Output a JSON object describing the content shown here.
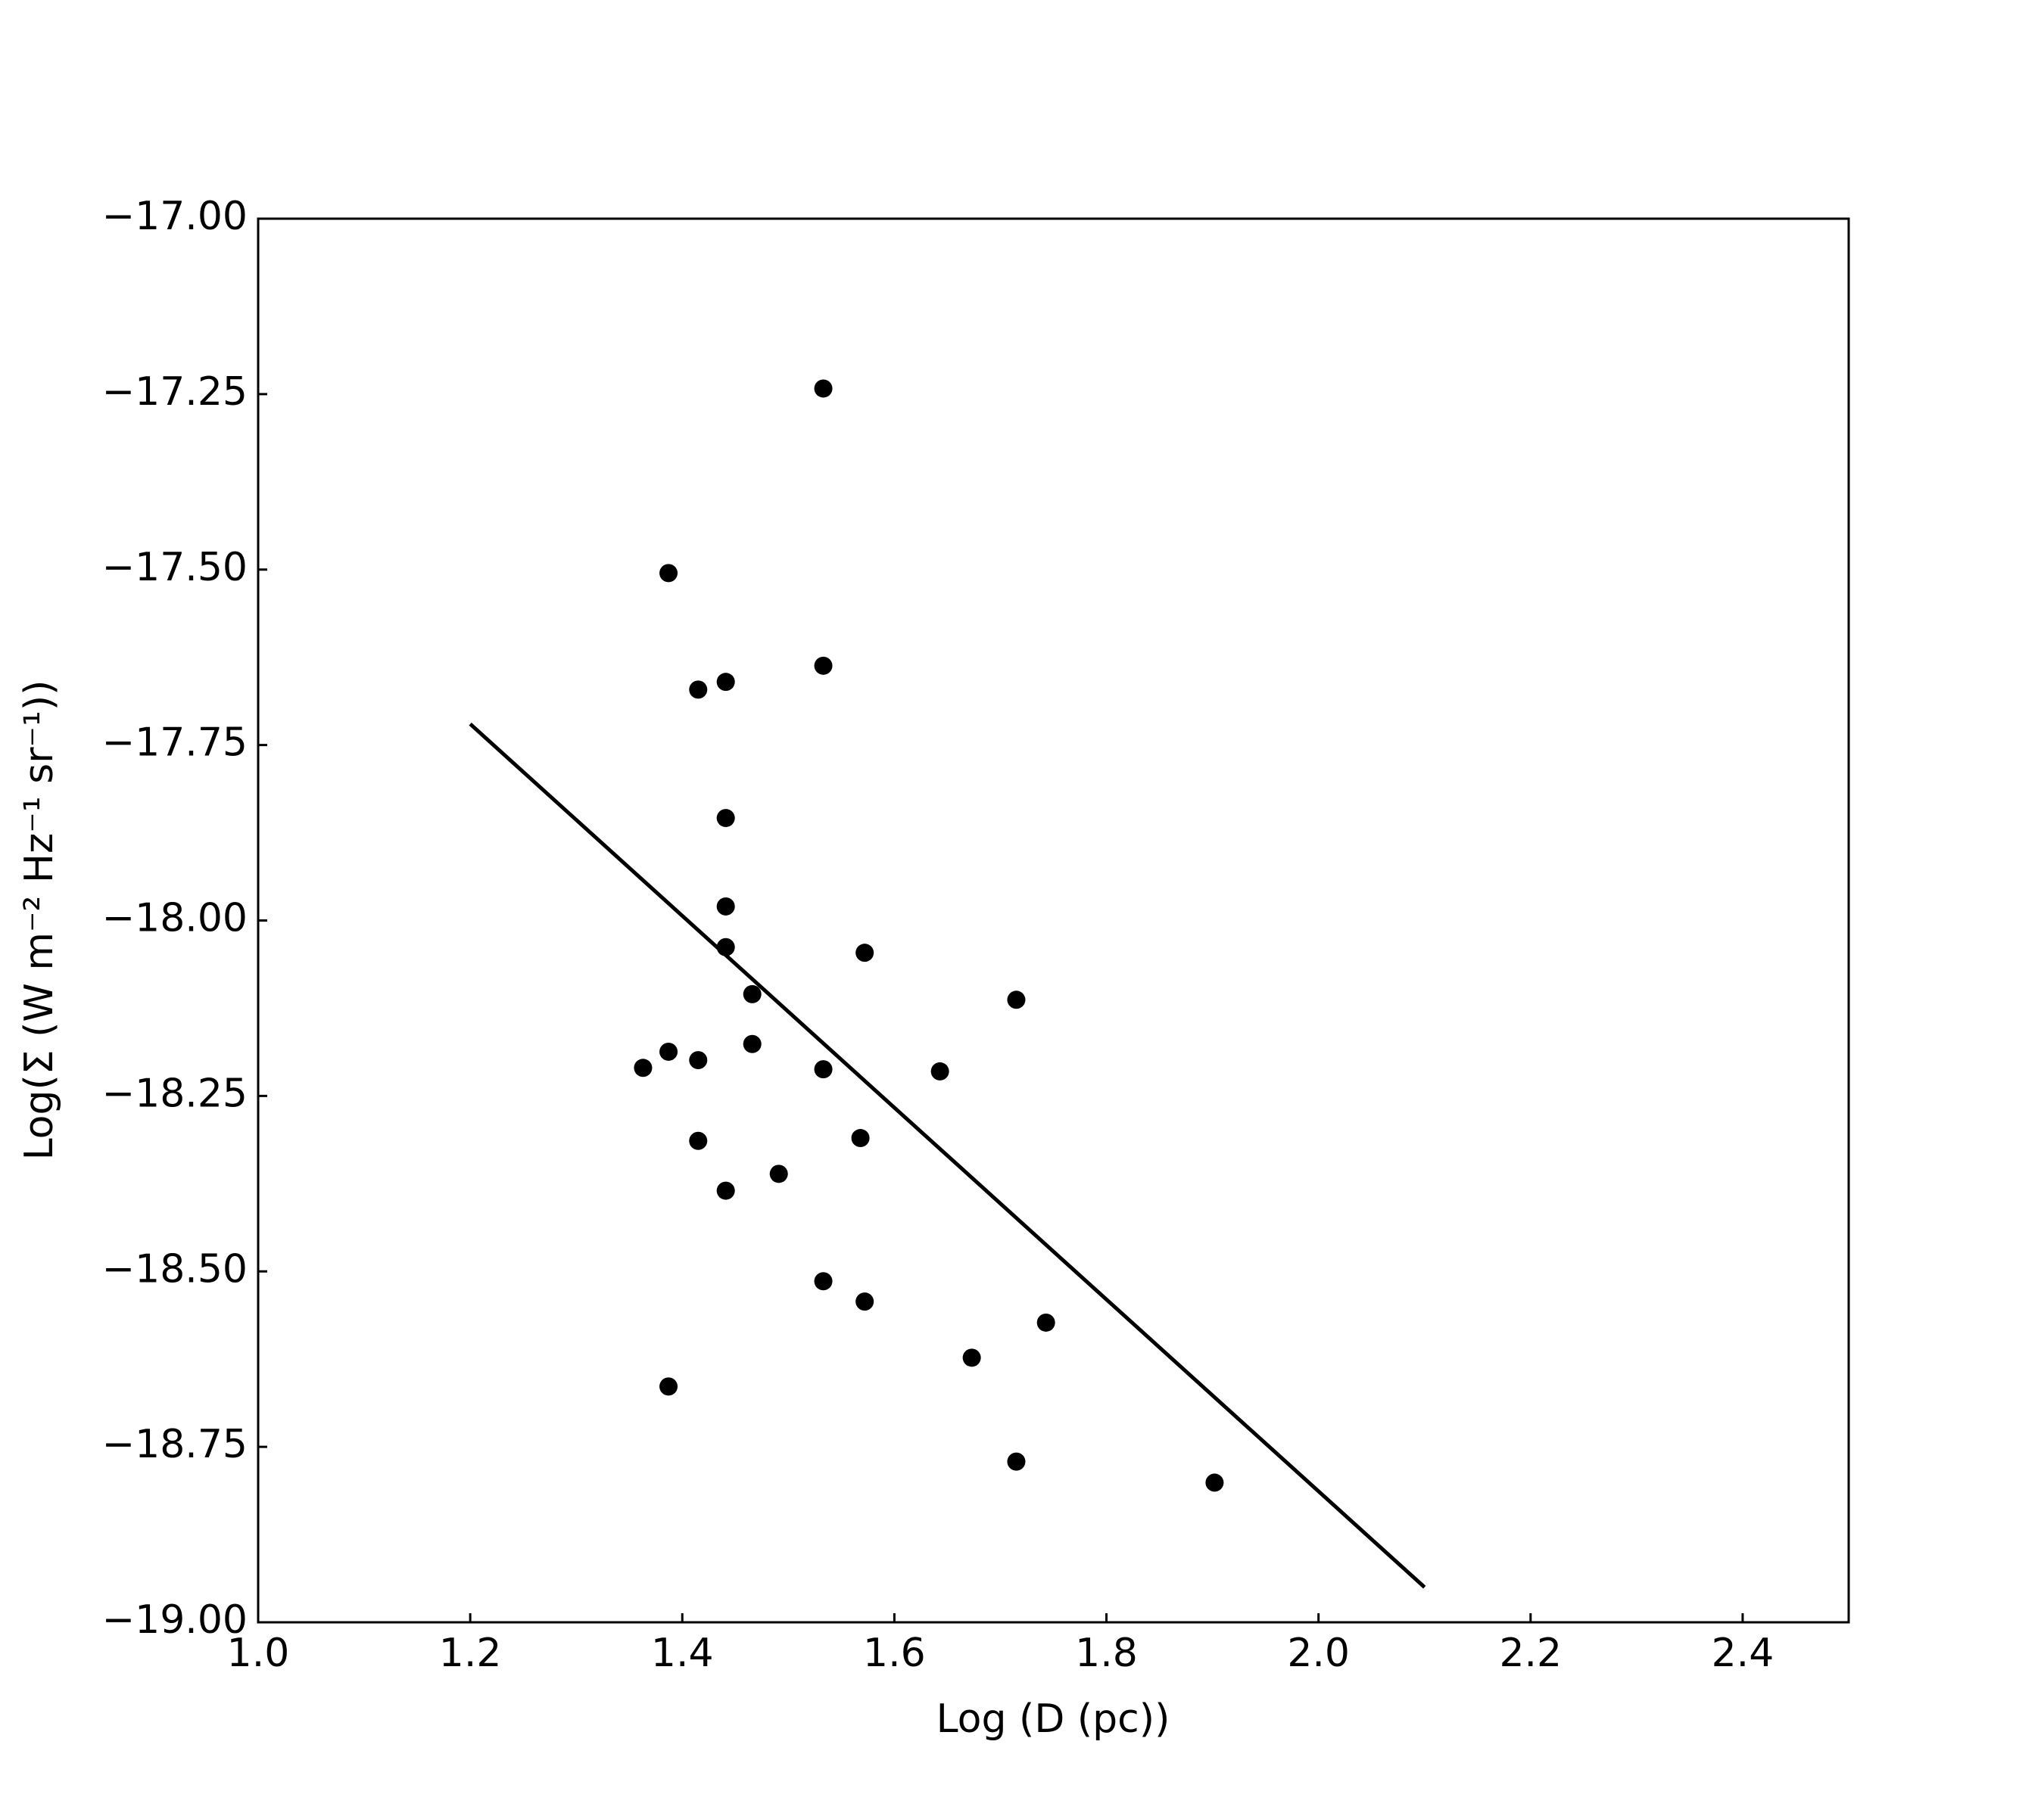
{
  "chart_data": {
    "type": "scatter",
    "xlabel": "Log (D (pc))",
    "ylabel": "Log(Σ (W m⁻² Hz⁻¹ sr⁻¹))",
    "xlim": [
      1.0,
      2.5
    ],
    "ylim": [
      -19.0,
      -17.0
    ],
    "xticks": [
      {
        "value": 1.0,
        "label": "1.0"
      },
      {
        "value": 1.2,
        "label": "1.2"
      },
      {
        "value": 1.4,
        "label": "1.4"
      },
      {
        "value": 1.6,
        "label": "1.6"
      },
      {
        "value": 1.8,
        "label": "1.8"
      },
      {
        "value": 2.0,
        "label": "2.0"
      },
      {
        "value": 2.2,
        "label": "2.2"
      },
      {
        "value": 2.4,
        "label": "2.4"
      }
    ],
    "yticks": [
      {
        "value": -17.0,
        "label": "−17.00"
      },
      {
        "value": -17.25,
        "label": "−17.25"
      },
      {
        "value": -17.5,
        "label": "−17.50"
      },
      {
        "value": -17.75,
        "label": "−17.75"
      },
      {
        "value": -18.0,
        "label": "−18.00"
      },
      {
        "value": -18.25,
        "label": "−18.25"
      },
      {
        "value": -18.5,
        "label": "−18.50"
      },
      {
        "value": -18.75,
        "label": "−18.75"
      },
      {
        "value": -19.0,
        "label": "−19.00"
      }
    ],
    "grid": false,
    "series": [
      {
        "type": "scatter",
        "color": "#000000",
        "x": [
          1.533,
          1.387,
          1.415,
          1.441,
          1.533,
          1.441,
          1.441,
          1.441,
          1.572,
          1.466,
          1.715,
          1.363,
          1.387,
          1.415,
          1.466,
          1.533,
          1.643,
          1.415,
          1.568,
          1.441,
          1.491,
          1.533,
          1.572,
          1.743,
          1.673,
          1.387,
          1.715,
          1.902
        ],
        "values": [
          -17.242,
          -17.505,
          -17.671,
          -17.66,
          -17.637,
          -17.854,
          -17.98,
          -18.038,
          -18.046,
          -18.105,
          -18.113,
          -18.21,
          -18.187,
          -18.199,
          -18.176,
          -18.212,
          -18.215,
          -18.314,
          -18.31,
          -18.385,
          -18.361,
          -18.514,
          -18.543,
          -18.573,
          -18.623,
          -18.664,
          -18.771,
          -18.801
        ]
      },
      {
        "type": "line",
        "color": "#000000",
        "x": [
          1.2,
          2.1
        ],
        "values": [
          -17.72,
          -18.95
        ]
      }
    ]
  }
}
